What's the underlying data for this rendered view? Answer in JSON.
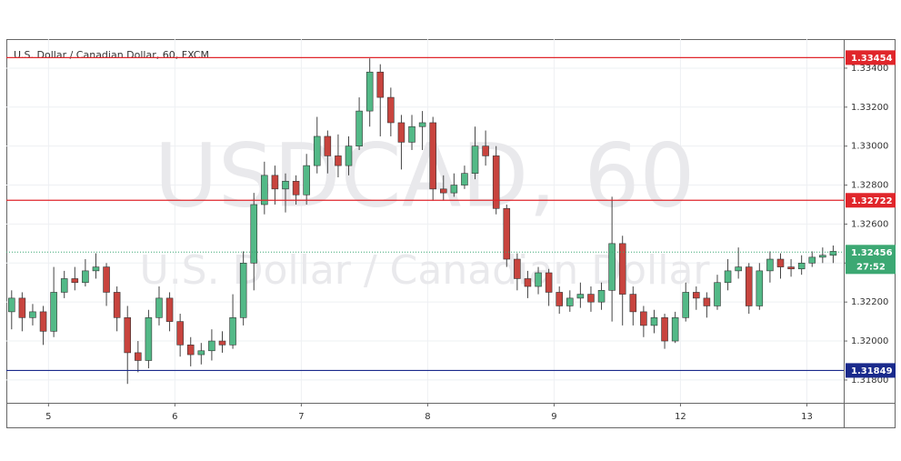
{
  "chart_data": {
    "type": "candlestick",
    "title": "U.S. Dollar / Canadian Dollar, 60, FXCM",
    "watermark": {
      "symbol": "USDCAD, 60",
      "description": "U.S. Dollar / Canadian Dollar"
    },
    "up_color": "#53b987",
    "down_color": "#c8443e",
    "x": [
      1,
      3,
      5,
      7,
      9,
      11,
      13,
      15,
      17,
      19,
      21,
      23,
      25,
      27,
      29,
      31,
      33,
      35,
      37,
      39,
      41,
      43,
      45,
      47,
      49,
      51,
      53,
      55,
      57,
      59,
      61,
      63,
      65,
      67,
      69,
      71,
      73,
      75,
      77,
      79,
      81,
      83,
      85,
      87,
      89,
      91,
      93,
      95,
      97,
      99,
      101,
      103,
      105,
      107,
      109,
      111,
      113,
      115,
      117,
      119,
      121,
      123,
      125,
      127,
      129,
      131,
      133,
      135,
      137,
      139,
      141,
      143,
      145,
      147,
      149,
      151,
      153,
      155,
      157
    ],
    "open": [
      1.3215,
      1.3222,
      1.3212,
      1.3215,
      1.3205,
      1.3225,
      1.3232,
      1.323,
      1.3236,
      1.3238,
      1.3225,
      1.3212,
      1.3194,
      1.319,
      1.3212,
      1.3222,
      1.321,
      1.3198,
      1.3193,
      1.3195,
      1.32,
      1.3198,
      1.3212,
      1.324,
      1.327,
      1.3285,
      1.3278,
      1.3282,
      1.3275,
      1.329,
      1.3305,
      1.3295,
      1.329,
      1.33,
      1.3318,
      1.3338,
      1.3325,
      1.3312,
      1.3302,
      1.331,
      1.3312,
      1.3278,
      1.3276,
      1.328,
      1.3286,
      1.33,
      1.3295,
      1.3268,
      1.3242,
      1.3232,
      1.3228,
      1.3235,
      1.3225,
      1.3218,
      1.3222,
      1.3224,
      1.322,
      1.3226,
      1.325,
      1.3224,
      1.3215,
      1.3208,
      1.3212,
      1.32,
      1.3212,
      1.3225,
      1.3222,
      1.3218,
      1.323,
      1.3236,
      1.3238,
      1.3218,
      1.3236,
      1.3242,
      1.3238,
      1.3237,
      1.324,
      1.3243,
      1.3244
    ],
    "high": [
      1.3226,
      1.3225,
      1.3219,
      1.3218,
      1.3238,
      1.3236,
      1.3238,
      1.3242,
      1.3245,
      1.324,
      1.3228,
      1.3218,
      1.32,
      1.3216,
      1.3228,
      1.3225,
      1.3214,
      1.3202,
      1.3199,
      1.3206,
      1.3205,
      1.3224,
      1.3246,
      1.3276,
      1.3292,
      1.329,
      1.3286,
      1.3285,
      1.3296,
      1.3315,
      1.3308,
      1.3306,
      1.3305,
      1.3325,
      1.3345,
      1.3342,
      1.333,
      1.3316,
      1.3316,
      1.3318,
      1.3315,
      1.3285,
      1.3286,
      1.329,
      1.331,
      1.3308,
      1.33,
      1.327,
      1.3245,
      1.3236,
      1.3238,
      1.3237,
      1.3228,
      1.3226,
      1.323,
      1.3228,
      1.323,
      1.3274,
      1.3254,
      1.3228,
      1.3218,
      1.3216,
      1.3214,
      1.3215,
      1.323,
      1.3228,
      1.3225,
      1.3234,
      1.3242,
      1.3248,
      1.324,
      1.324,
      1.3246,
      1.3245,
      1.3242,
      1.3244,
      1.3246,
      1.3248,
      1.3249
    ],
    "low": [
      1.3206,
      1.3205,
      1.3208,
      1.3198,
      1.3202,
      1.3222,
      1.3226,
      1.3228,
      1.3232,
      1.3218,
      1.3205,
      1.3178,
      1.3184,
      1.3186,
      1.3208,
      1.3205,
      1.3192,
      1.3187,
      1.3188,
      1.319,
      1.3194,
      1.3196,
      1.3208,
      1.3226,
      1.3265,
      1.327,
      1.3266,
      1.327,
      1.327,
      1.3286,
      1.3286,
      1.3284,
      1.3285,
      1.3298,
      1.331,
      1.3305,
      1.3305,
      1.3288,
      1.3298,
      1.3298,
      1.3272,
      1.3272,
      1.3274,
      1.3278,
      1.3283,
      1.329,
      1.3265,
      1.3238,
      1.3226,
      1.3222,
      1.3224,
      1.3218,
      1.3214,
      1.3215,
      1.3217,
      1.3215,
      1.3216,
      1.321,
      1.3208,
      1.3208,
      1.3202,
      1.3204,
      1.3196,
      1.3199,
      1.321,
      1.3216,
      1.3212,
      1.3216,
      1.3226,
      1.3232,
      1.3214,
      1.3216,
      1.323,
      1.3232,
      1.3233,
      1.3234,
      1.3238,
      1.324,
      1.324
    ],
    "close": [
      1.3222,
      1.3212,
      1.3215,
      1.3205,
      1.3225,
      1.3232,
      1.323,
      1.3236,
      1.3238,
      1.3225,
      1.3212,
      1.3194,
      1.319,
      1.3212,
      1.3222,
      1.321,
      1.3198,
      1.3193,
      1.3195,
      1.32,
      1.3198,
      1.3212,
      1.324,
      1.327,
      1.3285,
      1.3278,
      1.3282,
      1.3275,
      1.329,
      1.3305,
      1.3295,
      1.329,
      1.33,
      1.3318,
      1.3338,
      1.3325,
      1.3312,
      1.3302,
      1.331,
      1.3312,
      1.3278,
      1.3276,
      1.328,
      1.3286,
      1.33,
      1.3295,
      1.3268,
      1.3242,
      1.3232,
      1.3228,
      1.3235,
      1.3225,
      1.3218,
      1.3222,
      1.3224,
      1.322,
      1.3226,
      1.325,
      1.3224,
      1.3215,
      1.3208,
      1.3212,
      1.32,
      1.3212,
      1.3225,
      1.3222,
      1.3218,
      1.323,
      1.3236,
      1.3238,
      1.3218,
      1.3236,
      1.3242,
      1.3238,
      1.3237,
      1.324,
      1.3243,
      1.3244,
      1.3246
    ],
    "xlim": [
      0,
      159
    ],
    "xticks": [
      {
        "value": 8,
        "label": "5"
      },
      {
        "value": 32,
        "label": "6"
      },
      {
        "value": 56,
        "label": "7"
      },
      {
        "value": 80,
        "label": "8"
      },
      {
        "value": 104,
        "label": "9"
      },
      {
        "value": 128,
        "label": "12"
      },
      {
        "value": 152,
        "label": "13"
      }
    ],
    "ylim": [
      1.31683,
      1.33549
    ],
    "yticks": [
      {
        "value": 1.318,
        "label": "1.31800"
      },
      {
        "value": 1.32,
        "label": "1.32000"
      },
      {
        "value": 1.322,
        "label": "1.32200"
      },
      {
        "value": 1.324,
        "label": "1.32400"
      },
      {
        "value": 1.326,
        "label": "1.32600"
      },
      {
        "value": 1.328,
        "label": "1.32800"
      },
      {
        "value": 1.33,
        "label": "1.33000"
      },
      {
        "value": 1.332,
        "label": "1.33200"
      },
      {
        "value": 1.334,
        "label": "1.33400"
      }
    ],
    "grid": true,
    "levels": [
      {
        "value": 1.33454,
        "color": "#e0262b"
      },
      {
        "value": 1.32722,
        "color": "#e0262b"
      },
      {
        "value": 1.31849,
        "color": "#1a2a8c"
      }
    ],
    "last_price": {
      "value": 1.32456,
      "countdown": "27:52",
      "color": "#3ca873"
    }
  }
}
